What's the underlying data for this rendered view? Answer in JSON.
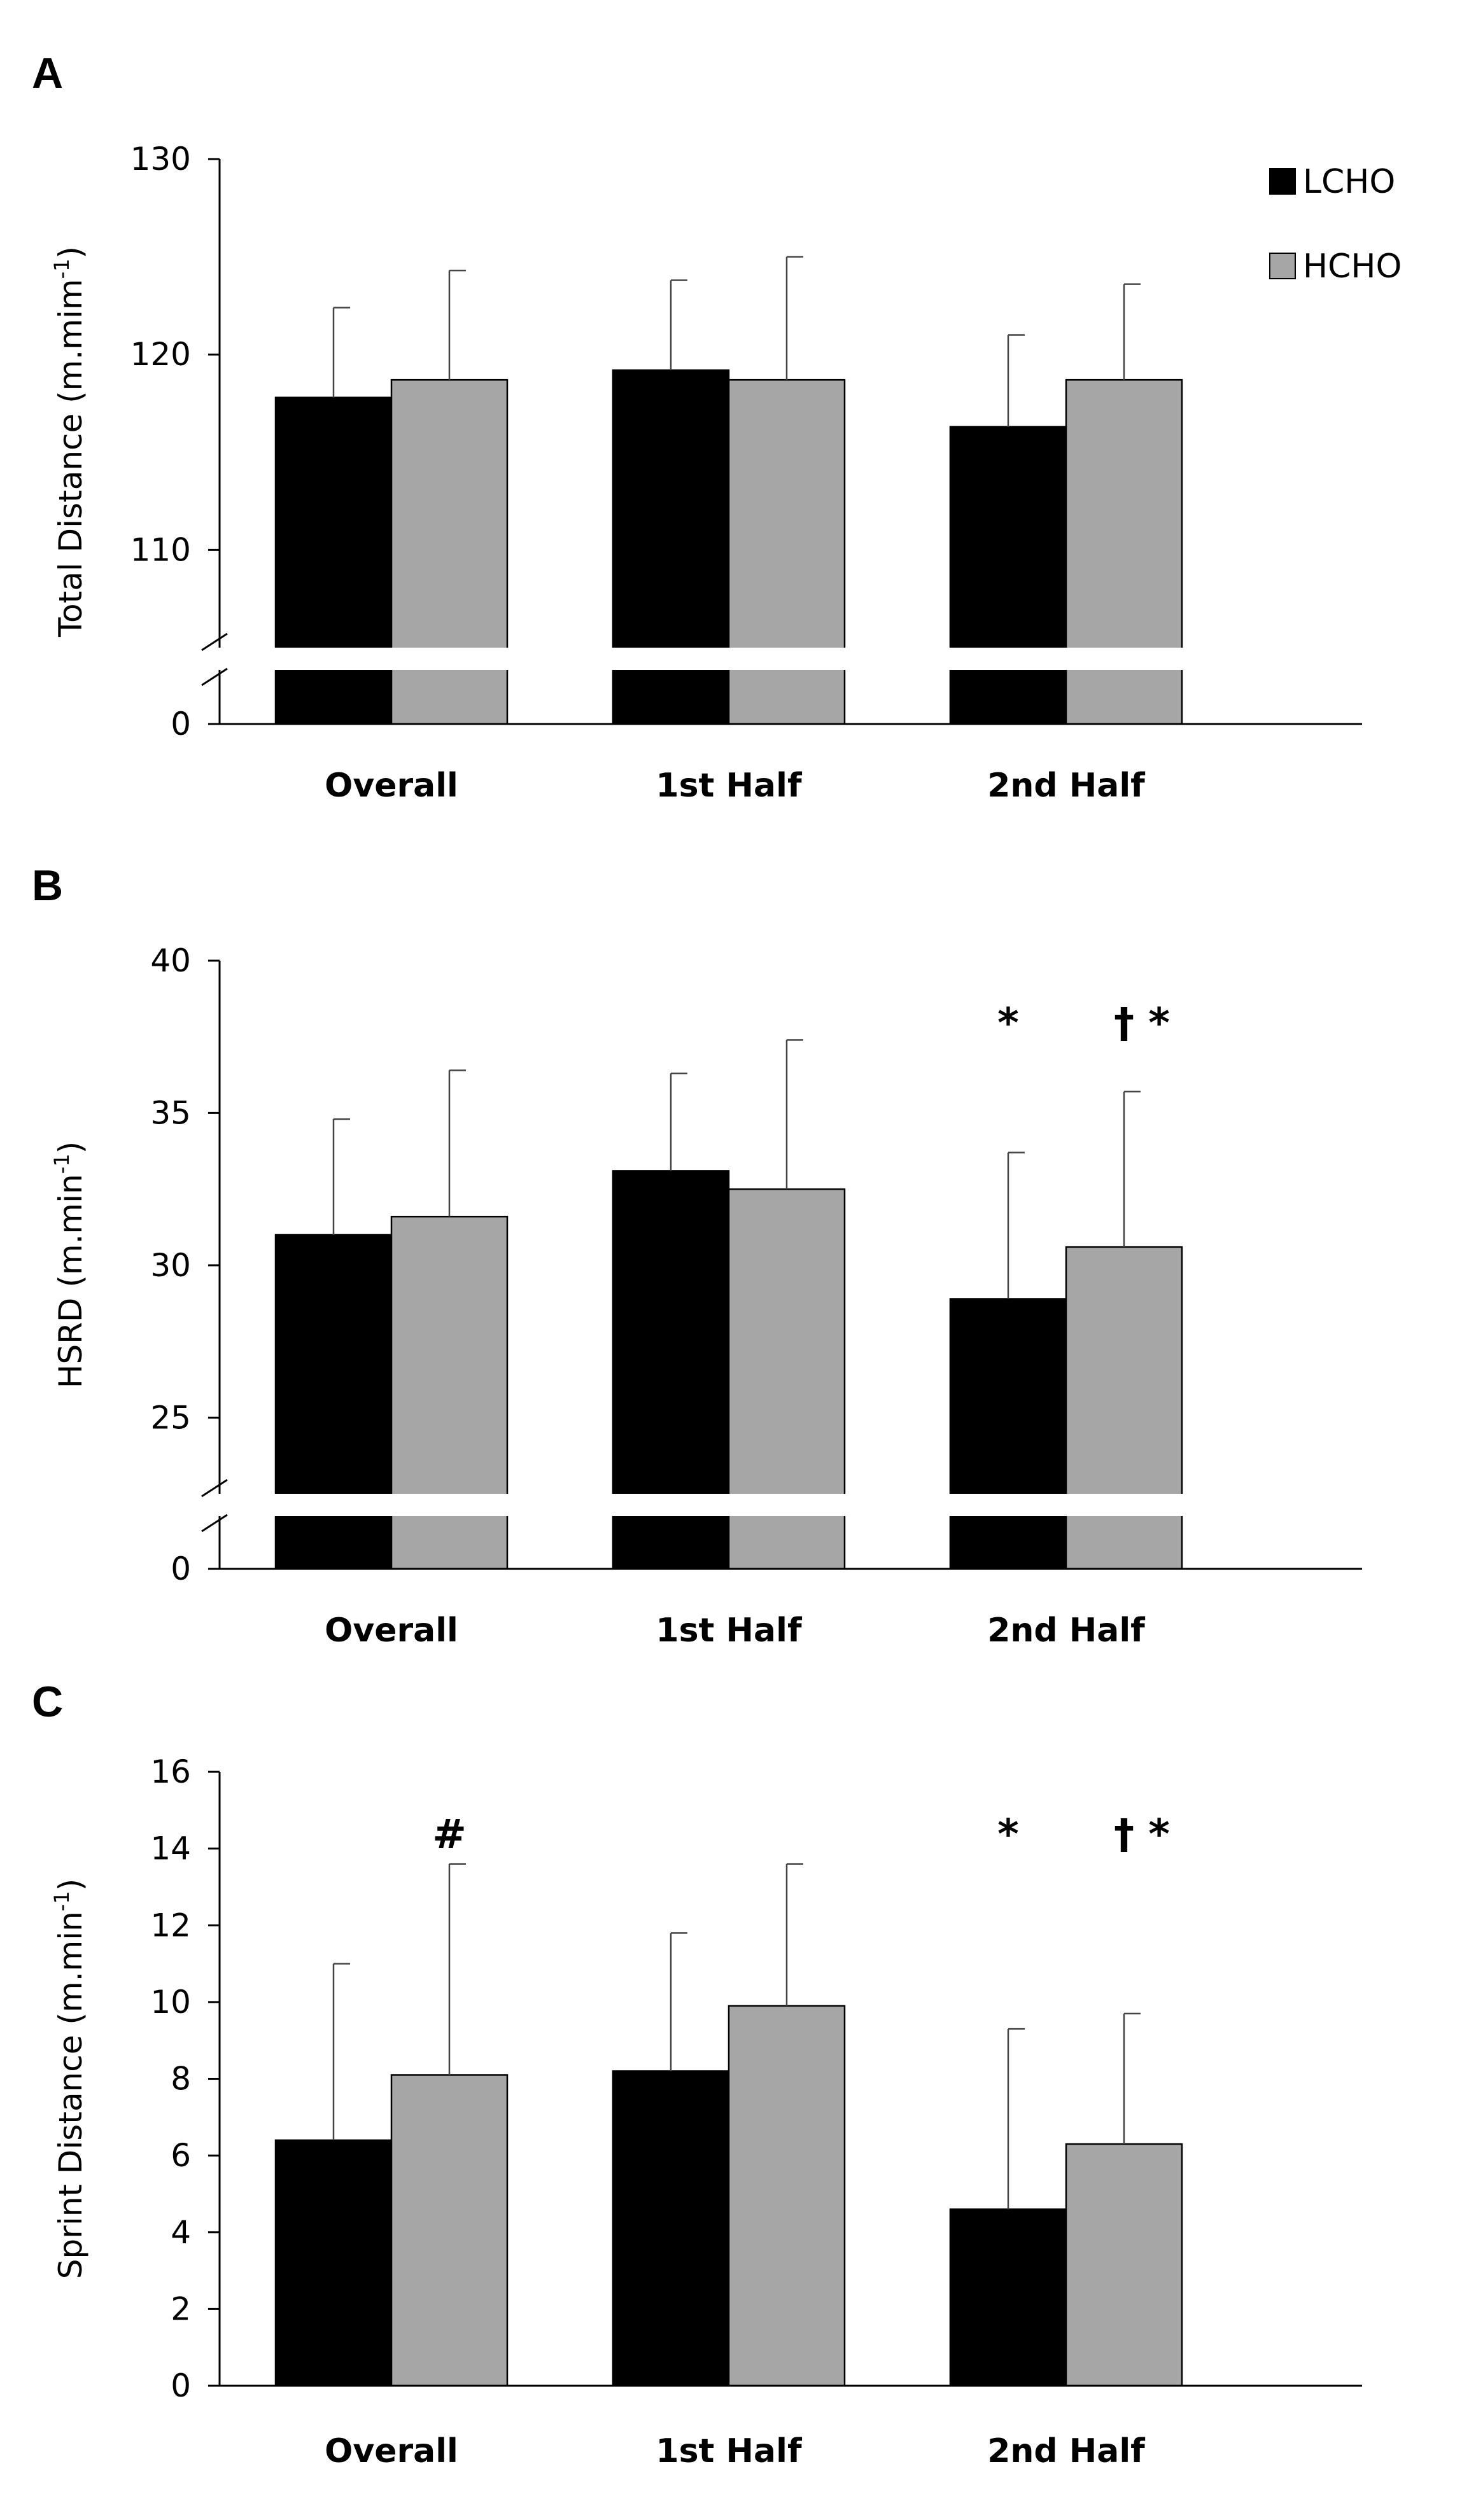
{
  "legend": [
    {
      "label": "LCHO",
      "color": "#000000"
    },
    {
      "label": "HCHO",
      "color": "#a6a6a6"
    }
  ],
  "chart_data": [
    {
      "panel": "A",
      "type": "bar",
      "categories": [
        "Overall",
        "1st Half",
        "2nd Half"
      ],
      "ylabel": "Total Distance  (m.mim",
      "ylabel_sup": "-1",
      "ylabel_end": ")",
      "axis_break": true,
      "break_ylim": [
        105,
        130
      ],
      "ticks": [
        0,
        110,
        120,
        130
      ],
      "series": [
        {
          "name": "LCHO",
          "color": "#000000",
          "values": [
            117.8,
            119.2,
            116.3
          ],
          "errors": [
            4.6,
            4.6,
            4.7
          ]
        },
        {
          "name": "HCHO",
          "color": "#a6a6a6",
          "values": [
            118.7,
            118.7,
            118.7
          ],
          "errors": [
            5.6,
            6.3,
            4.9
          ]
        }
      ],
      "annotations": []
    },
    {
      "panel": "B",
      "type": "bar",
      "categories": [
        "Overall",
        "1st Half",
        "2nd Half"
      ],
      "ylabel": "HSRD (m.min",
      "ylabel_sup": "-1",
      "ylabel_end": ")",
      "axis_break": true,
      "break_ylim": [
        22.5,
        40
      ],
      "ticks": [
        0,
        25,
        30,
        35,
        40
      ],
      "series": [
        {
          "name": "LCHO",
          "color": "#000000",
          "values": [
            31.0,
            33.1,
            28.9
          ],
          "errors": [
            3.8,
            3.2,
            4.8
          ]
        },
        {
          "name": "HCHO",
          "color": "#a6a6a6",
          "values": [
            31.6,
            32.5,
            30.6
          ],
          "errors": [
            4.8,
            4.9,
            5.1
          ]
        }
      ],
      "annotations": [
        {
          "category": 2,
          "series": 0,
          "text": "*"
        },
        {
          "category": 2,
          "series": 1,
          "text": "† *"
        }
      ]
    },
    {
      "panel": "C",
      "type": "bar",
      "categories": [
        "Overall",
        "1st Half",
        "2nd Half"
      ],
      "ylabel": "Sprint Distance (m.min",
      "ylabel_sup": "-1",
      "ylabel_end": ")",
      "axis_break": false,
      "ylim": [
        0,
        16
      ],
      "ticks": [
        0,
        2,
        4,
        6,
        8,
        10,
        12,
        14,
        16
      ],
      "series": [
        {
          "name": "LCHO",
          "color": "#000000",
          "values": [
            6.4,
            8.2,
            4.6
          ],
          "errors": [
            4.6,
            3.6,
            4.7
          ]
        },
        {
          "name": "HCHO",
          "color": "#a6a6a6",
          "values": [
            8.1,
            9.9,
            6.3
          ],
          "errors": [
            5.5,
            3.7,
            3.4
          ]
        }
      ],
      "annotations": [
        {
          "category": 0,
          "series": 1,
          "text": "#"
        },
        {
          "category": 2,
          "series": 0,
          "text": "*"
        },
        {
          "category": 2,
          "series": 1,
          "text": "† *"
        }
      ]
    }
  ]
}
